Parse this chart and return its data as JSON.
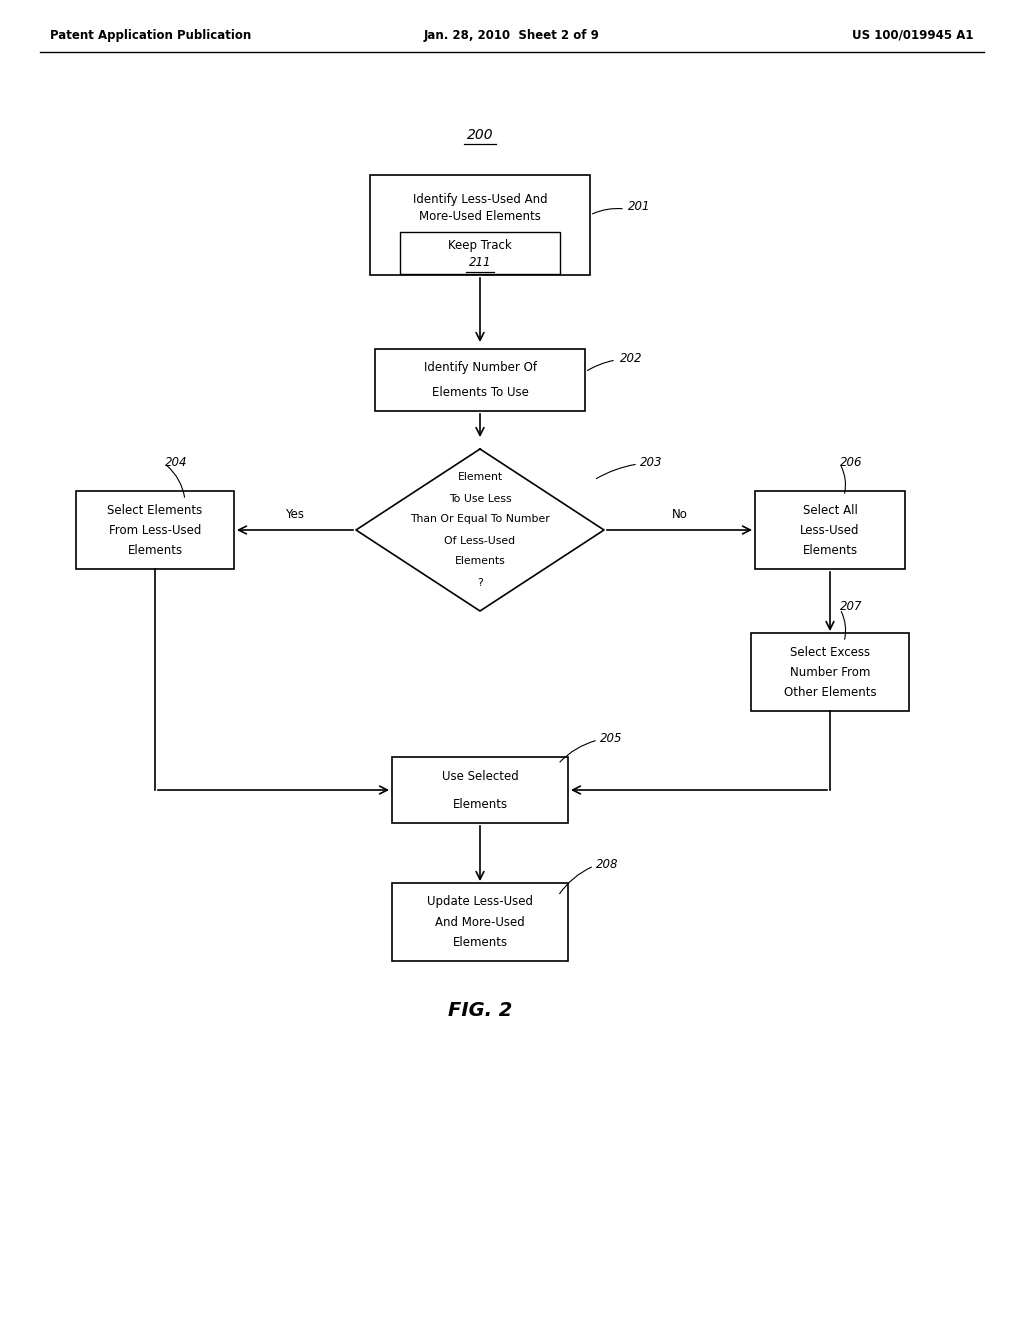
{
  "header_left": "Patent Application Publication",
  "header_center": "Jan. 28, 2010  Sheet 2 of 9",
  "header_right": "US 100/019945 A1",
  "fig_label": "FIG. 2",
  "label_200": "200",
  "box201_line1": "Identify Less-Used And",
  "box201_line2": "More-Used Elements",
  "box201_inner1": "Keep Track",
  "box201_inner2": "211",
  "label_201": "201",
  "box202_line1": "Identify Number Of",
  "box202_line2": "Elements To Use",
  "label_202": "202",
  "diamond203_lines": [
    "Element",
    "To Use Less",
    "Than Or Equal To Number",
    "Of Less-Used",
    "Elements",
    "?"
  ],
  "label_203": "203",
  "box204_line1": "Select Elements",
  "box204_line2": "From Less-Used",
  "box204_line3": "Elements",
  "label_204": "204",
  "box205_line1": "Use Selected",
  "box205_line2": "Elements",
  "label_205": "205",
  "box206_line1": "Select All",
  "box206_line2": "Less-Used",
  "box206_line3": "Elements",
  "label_206": "206",
  "box207_line1": "Select Excess",
  "box207_line2": "Number From",
  "box207_line3": "Other Elements",
  "label_207": "207",
  "box208_line1": "Update Less-Used",
  "box208_line2": "And More-Used",
  "box208_line3": "Elements",
  "label_208": "208",
  "yes_label": "Yes",
  "no_label": "No",
  "bg_color": "#ffffff",
  "box_color": "#ffffff",
  "box_edge_color": "#000000",
  "text_color": "#000000",
  "line_color": "#000000"
}
